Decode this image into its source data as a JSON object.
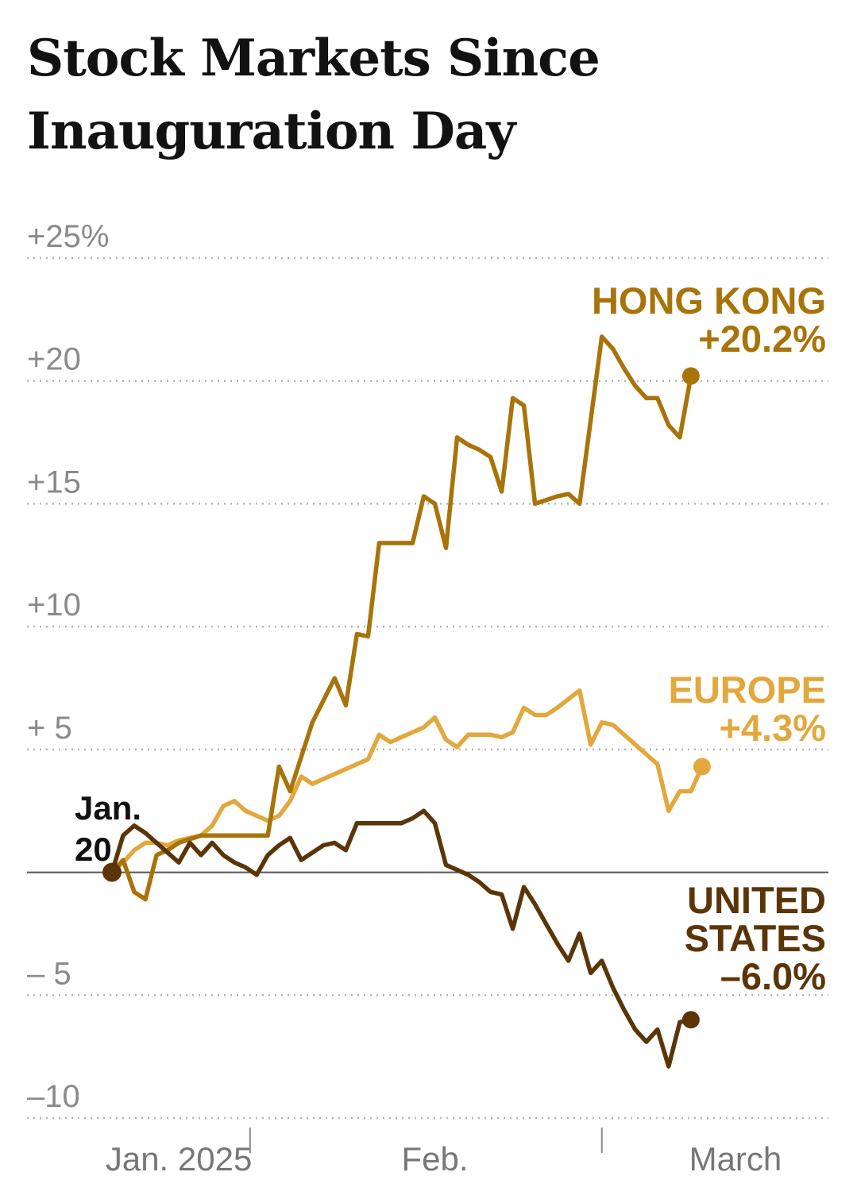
{
  "title_lines": [
    "Stock Markets Since",
    "Inauguration Day"
  ],
  "chart_data": {
    "type": "line",
    "title": "Stock Markets Since Inauguration Day",
    "ylim": [
      -10,
      25
    ],
    "y_ticks": [
      {
        "value": 25,
        "label": "+25%"
      },
      {
        "value": 20,
        "label": "+20"
      },
      {
        "value": 15,
        "label": "+15"
      },
      {
        "value": 10,
        "label": "+10"
      },
      {
        "value": 5,
        "label": "+ 5"
      },
      {
        "value": -5,
        "label": "– 5"
      },
      {
        "value": -10,
        "label": "–10"
      }
    ],
    "x_labels": [
      {
        "label": "Jan. 2025",
        "pos": 3
      },
      {
        "label": "Feb.",
        "pos": 14.5
      },
      {
        "label": "March",
        "pos": 28
      }
    ],
    "x_tick_marks": [
      6.2,
      22
    ],
    "start_label": [
      "Jan.",
      "20"
    ],
    "x_max": 30,
    "series": [
      {
        "name": "HONG KONG",
        "label_lines": [
          "HONG KONG",
          "+20.2%"
        ],
        "final_label": "+20.2%",
        "color": "#A8740A",
        "points": [
          [
            0,
            0
          ],
          [
            0.5,
            0.5
          ],
          [
            1,
            -0.8
          ],
          [
            1.5,
            -1.1
          ],
          [
            2,
            0.7
          ],
          [
            2.5,
            0.9
          ],
          [
            3,
            1.2
          ],
          [
            4,
            1.5
          ],
          [
            5,
            1.5
          ],
          [
            6,
            1.5
          ],
          [
            7,
            1.5
          ],
          [
            7.5,
            4.3
          ],
          [
            8,
            3.3
          ],
          [
            9,
            6.1
          ],
          [
            10,
            7.9
          ],
          [
            10.5,
            6.8
          ],
          [
            11,
            9.7
          ],
          [
            11.5,
            9.6
          ],
          [
            12,
            13.4
          ],
          [
            13,
            13.4
          ],
          [
            13.5,
            13.4
          ],
          [
            14,
            15.3
          ],
          [
            14.5,
            15.0
          ],
          [
            15,
            13.2
          ],
          [
            15.5,
            17.7
          ],
          [
            16,
            17.4
          ],
          [
            16.5,
            17.2
          ],
          [
            17,
            16.9
          ],
          [
            17.5,
            15.5
          ],
          [
            18,
            19.3
          ],
          [
            18.5,
            19.0
          ],
          [
            19,
            15.0
          ],
          [
            20,
            15.3
          ],
          [
            20.5,
            15.4
          ],
          [
            21,
            15.0
          ],
          [
            22,
            21.8
          ],
          [
            22.5,
            21.3
          ],
          [
            23,
            20.5
          ],
          [
            23.5,
            19.8
          ],
          [
            24,
            19.3
          ],
          [
            24.5,
            19.3
          ],
          [
            25,
            18.2
          ],
          [
            25.5,
            17.7
          ],
          [
            26,
            20.2
          ]
        ]
      },
      {
        "name": "EUROPE",
        "label_lines": [
          "EUROPE",
          "+4.3%"
        ],
        "final_label": "+4.3%",
        "color": "#E2A83D",
        "points": [
          [
            0,
            0
          ],
          [
            0.5,
            0.4
          ],
          [
            1,
            0.9
          ],
          [
            1.5,
            1.2
          ],
          [
            2,
            1.2
          ],
          [
            2.5,
            1.1
          ],
          [
            3,
            1.3
          ],
          [
            4,
            1.5
          ],
          [
            4.5,
            1.9
          ],
          [
            5,
            2.7
          ],
          [
            5.5,
            2.9
          ],
          [
            6,
            2.5
          ],
          [
            7,
            2.1
          ],
          [
            7.5,
            2.3
          ],
          [
            8,
            2.9
          ],
          [
            8.5,
            3.9
          ],
          [
            9,
            3.6
          ],
          [
            10,
            4.0
          ],
          [
            11,
            4.4
          ],
          [
            11.5,
            4.6
          ],
          [
            12,
            5.6
          ],
          [
            12.5,
            5.3
          ],
          [
            13,
            5.5
          ],
          [
            14,
            5.9
          ],
          [
            14.5,
            6.3
          ],
          [
            15,
            5.4
          ],
          [
            15.5,
            5.1
          ],
          [
            16,
            5.6
          ],
          [
            17,
            5.6
          ],
          [
            17.5,
            5.5
          ],
          [
            18,
            5.7
          ],
          [
            18.5,
            6.7
          ],
          [
            19,
            6.4
          ],
          [
            19.5,
            6.4
          ],
          [
            20,
            6.7
          ],
          [
            21,
            7.4
          ],
          [
            21.5,
            5.2
          ],
          [
            22,
            6.1
          ],
          [
            22.5,
            6.0
          ],
          [
            23,
            5.6
          ],
          [
            24,
            4.8
          ],
          [
            24.5,
            4.4
          ],
          [
            25,
            2.5
          ],
          [
            25.5,
            3.3
          ],
          [
            26,
            3.3
          ],
          [
            26.5,
            4.3
          ]
        ]
      },
      {
        "name": "UNITED STATES",
        "label_lines": [
          "UNITED",
          "STATES",
          "–6.0%"
        ],
        "final_label": "–6.0%",
        "color": "#5B3508",
        "points": [
          [
            0,
            0
          ],
          [
            0.5,
            1.5
          ],
          [
            1,
            1.9
          ],
          [
            1.5,
            1.6
          ],
          [
            2,
            1.2
          ],
          [
            2.5,
            0.8
          ],
          [
            3,
            0.4
          ],
          [
            3.5,
            1.2
          ],
          [
            4,
            0.7
          ],
          [
            4.5,
            1.2
          ],
          [
            5,
            0.7
          ],
          [
            5.5,
            0.4
          ],
          [
            6,
            0.2
          ],
          [
            6.5,
            -0.1
          ],
          [
            7,
            0.7
          ],
          [
            7.5,
            1.1
          ],
          [
            8,
            1.4
          ],
          [
            8.5,
            0.5
          ],
          [
            9,
            0.8
          ],
          [
            9.5,
            1.1
          ],
          [
            10,
            1.2
          ],
          [
            10.5,
            0.9
          ],
          [
            11,
            2.0
          ],
          [
            12,
            2.0
          ],
          [
            13,
            2.0
          ],
          [
            13.5,
            2.2
          ],
          [
            14,
            2.5
          ],
          [
            14.5,
            2.0
          ],
          [
            15,
            0.3
          ],
          [
            15.5,
            0.1
          ],
          [
            16,
            -0.1
          ],
          [
            16.5,
            -0.4
          ],
          [
            17,
            -0.8
          ],
          [
            17.5,
            -0.9
          ],
          [
            18,
            -2.3
          ],
          [
            18.5,
            -0.6
          ],
          [
            19,
            -1.3
          ],
          [
            19.5,
            -2.1
          ],
          [
            20,
            -2.9
          ],
          [
            20.5,
            -3.6
          ],
          [
            21,
            -2.5
          ],
          [
            21.5,
            -4.1
          ],
          [
            22,
            -3.6
          ],
          [
            22.5,
            -4.7
          ],
          [
            23,
            -5.6
          ],
          [
            23.5,
            -6.4
          ],
          [
            24,
            -6.9
          ],
          [
            24.5,
            -6.4
          ],
          [
            25,
            -7.9
          ],
          [
            25.5,
            -6.1
          ],
          [
            26,
            -6.0
          ]
        ]
      }
    ]
  }
}
